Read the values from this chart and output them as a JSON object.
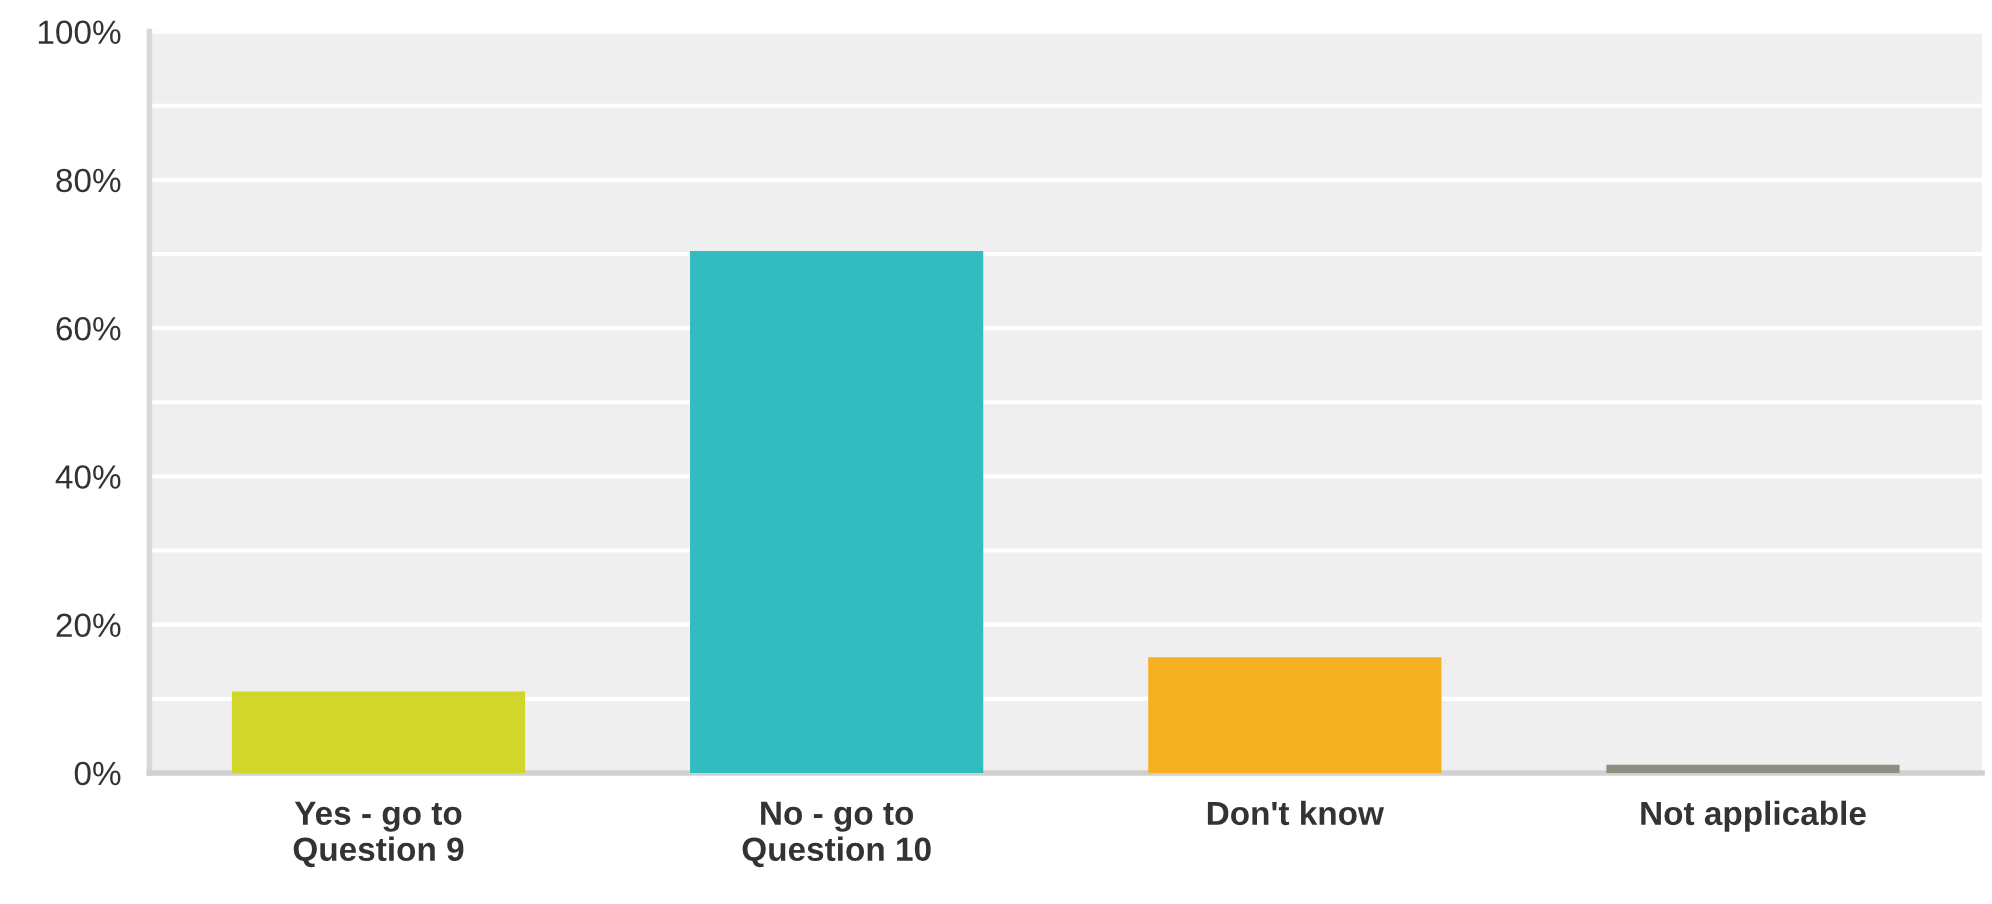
{
  "chart_data": {
    "type": "bar",
    "categories": [
      "Yes - go to\nQuestion 9",
      "No - go to\nQuestion 10",
      "Don't know",
      "Not applicable"
    ],
    "values": [
      11.0,
      70.4,
      15.6,
      1.1
    ],
    "colors": [
      "#d0d62a",
      "#33bcbf",
      "#f5b021",
      "#8c8e80"
    ],
    "ylim": [
      0,
      100
    ],
    "yticks": [
      {
        "value": 0,
        "label": "0%"
      },
      {
        "value": 10,
        "label": null
      },
      {
        "value": 20,
        "label": "20%"
      },
      {
        "value": 30,
        "label": null
      },
      {
        "value": 40,
        "label": "40%"
      },
      {
        "value": 50,
        "label": null
      },
      {
        "value": 60,
        "label": "60%"
      },
      {
        "value": 70,
        "label": null
      },
      {
        "value": 80,
        "label": "80%"
      },
      {
        "value": 90,
        "label": null
      },
      {
        "value": 100,
        "label": "100%"
      }
    ],
    "grid": "y"
  }
}
